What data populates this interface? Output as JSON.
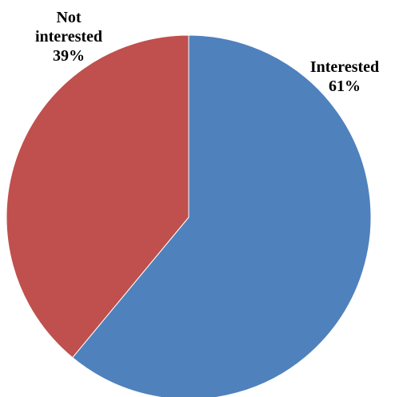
{
  "chart_data": {
    "type": "pie",
    "title": "",
    "slices": [
      {
        "label": "Interested",
        "value": 61,
        "value_label": "61%",
        "color": "#4F81BD",
        "label_lines": [
          "Interested",
          "61%"
        ]
      },
      {
        "label": "Not interested",
        "value": 39,
        "value_label": "39%",
        "color": "#C0504D",
        "label_lines": [
          "Not",
          "interested",
          "39%"
        ]
      }
    ],
    "legend": "none",
    "start_angle": "12 o'clock",
    "direction": "clockwise"
  }
}
